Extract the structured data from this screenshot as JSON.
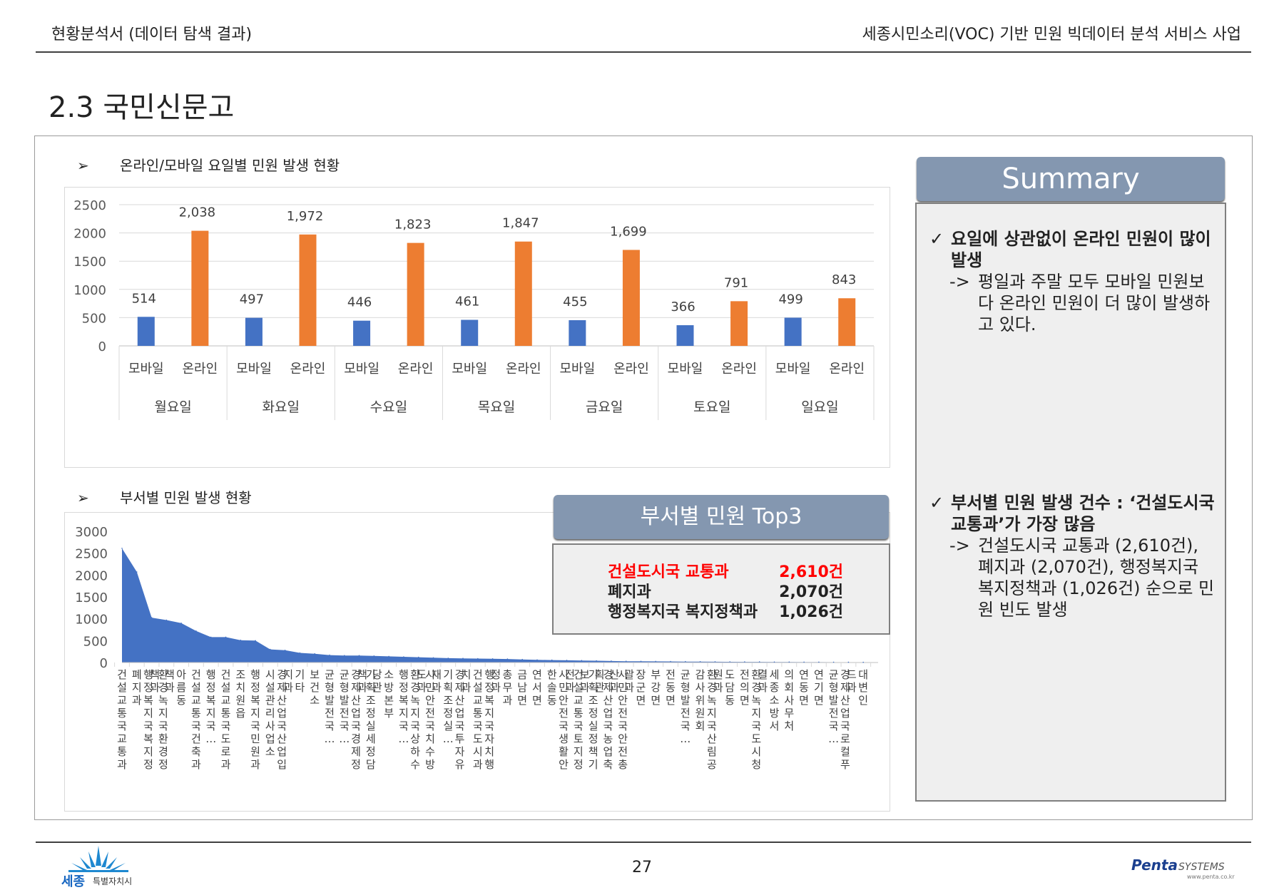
{
  "header": {
    "left": "현황분석서 (데이터 탐색 결과)",
    "right": "세종시민소리(VOC) 기반 민원 빅데이터 분석 서비스 사업"
  },
  "title": "2.3 국민신문고",
  "section1": {
    "arrow": "➢",
    "title": "온라인/모바일 요일별 민원 발생 현황"
  },
  "section2": {
    "arrow": "➢",
    "title": "부서별 민원 발생 현황"
  },
  "chart_data": [
    {
      "type": "bar",
      "days": [
        "월요일",
        "화요일",
        "수요일",
        "목요일",
        "금요일",
        "토요일",
        "일요일"
      ],
      "sub_categories": [
        "모바일",
        "온라인"
      ],
      "series": [
        {
          "name": "모바일",
          "values": [
            514,
            497,
            446,
            461,
            455,
            366,
            499
          ],
          "color": "#4472c4"
        },
        {
          "name": "온라인",
          "values": [
            2038,
            1972,
            1823,
            1847,
            1699,
            791,
            843
          ],
          "color": "#ed7d31"
        }
      ],
      "data_labels": {
        "모바일": [
          "514",
          "497",
          "446",
          "461",
          "455",
          "366",
          "499"
        ],
        "온라인": [
          "2,038",
          "1,972",
          "1,823",
          "1,847",
          "1,699",
          "791",
          "843"
        ]
      },
      "yticks": [
        "0",
        "500",
        "1000",
        "1500",
        "2000",
        "2500"
      ],
      "ylim": [
        0,
        2500
      ]
    },
    {
      "type": "area",
      "color": "#4472c4",
      "yticks": [
        "0",
        "500",
        "1000",
        "1500",
        "2000",
        "2500",
        "3000"
      ],
      "ylim": [
        0,
        3000
      ],
      "categories": [
        "건설교통국 교통과",
        "폐지과",
        "행정복지국 복지정책과",
        "환경녹지국 환경정책과",
        "아름동",
        "건설교통국 건축과",
        "행정복지국…",
        "건설교통국 도로과",
        "조치원읍",
        "행정복지국 민원과",
        "시설관리사업소",
        "경제산업국 산업입지과",
        "기타",
        "보건소",
        "균형발전국…",
        "균형발전국…",
        "경제산업국 경제정책과",
        "기획조정실 세정담당관",
        "소방본부",
        "행정복지국…",
        "환경녹지국 상하수도과",
        "시민안전국 치수방재과",
        "기획조정실…",
        "경제산업국 투자유치과",
        "건설교통국 도시과",
        "행정복지국 자치행정과",
        "총무과",
        "금남면",
        "연서면",
        "한솔동",
        "시민안전국 생활안전과",
        "건설교통국 토지정보과",
        "기획조정실 정책기획관",
        "경제산업국 농업축산과",
        "시민안전국 안전총괄과",
        "장군면",
        "부강면",
        "전동면",
        "균형발전국…",
        "감사위원회",
        "환경녹지국 산림공원과",
        "도담동",
        "전의면",
        "환경녹지국 도시청결과",
        "세종소방서",
        "의회사무처",
        "연동면",
        "연기면",
        "균형발전국…",
        "경제산업국 로컬푸드과",
        "대변인"
      ],
      "values": [
        2610,
        2070,
        1026,
        970,
        900,
        720,
        580,
        580,
        510,
        500,
        300,
        280,
        220,
        200,
        170,
        160,
        160,
        150,
        140,
        130,
        120,
        110,
        100,
        95,
        90,
        85,
        80,
        70,
        60,
        55,
        50,
        45,
        40,
        35,
        30,
        28,
        26,
        24,
        22,
        20,
        18,
        16,
        15,
        14,
        12,
        11,
        10,
        9,
        8,
        6,
        5
      ]
    }
  ],
  "top3": {
    "title": "부서별 민원 Top3",
    "rows": [
      {
        "name": "건설도시국 교통과",
        "value": "2,610건",
        "color": "#ff0000"
      },
      {
        "name": "폐지과",
        "value": "2,070건",
        "color": "#000000"
      },
      {
        "name": "행정복지국 복지정책과",
        "value": "1,026건",
        "color": "#000000"
      }
    ]
  },
  "summary": {
    "title": "Summary",
    "item1": {
      "check": "✓",
      "headline": "요일에 상관없이 온라인 민원이 많이 발생",
      "arrow": "->",
      "detail": "평일과 주말 모두 모바일 민원보다 온라인 민원이 더 많이 발생하고 있다."
    },
    "item2": {
      "check": "✓",
      "headline": "부서별 민원 발생 건수 : ‘건설도시국 교통과’가 가장 많음",
      "arrow": "->",
      "detail": "건설도시국 교통과 (2,610건), 폐지과 (2,070건), 행정복지국 복지정책과 (1,026건) 순으로 민원 빈도 발생"
    }
  },
  "footer": {
    "page": "27",
    "logo_left": "세종 특별자치시",
    "logo_right_brand": "Penta",
    "logo_right_sub": "SYSTEMS",
    "logo_right_url": "www.penta.co.kr"
  }
}
